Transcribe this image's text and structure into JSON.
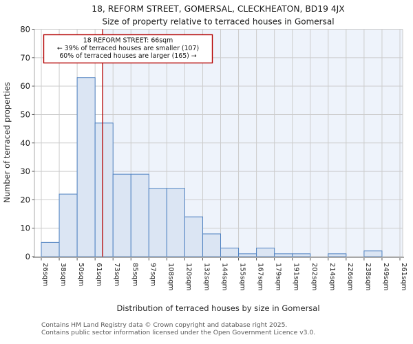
{
  "chart_data": {
    "type": "bar",
    "title": "18, REFORM STREET, GOMERSAL, CLECKHEATON, BD19 4JX",
    "subtitle": "Size of property relative to terraced houses in Gomersal",
    "xlabel": "Distribution of terraced houses by size in Gomersal",
    "ylabel": "Number of terraced properties",
    "categories": [
      "26sqm",
      "38sqm",
      "50sqm",
      "61sqm",
      "73sqm",
      "85sqm",
      "97sqm",
      "108sqm",
      "120sqm",
      "132sqm",
      "144sqm",
      "155sqm",
      "167sqm",
      "179sqm",
      "191sqm",
      "202sqm",
      "214sqm",
      "226sqm",
      "238sqm",
      "249sqm",
      "261sqm"
    ],
    "bin_edges_sqm": [
      26,
      38,
      50,
      61,
      73,
      85,
      97,
      108,
      120,
      132,
      144,
      155,
      167,
      179,
      191,
      202,
      214,
      226,
      238,
      249,
      261
    ],
    "values": [
      5,
      22,
      63,
      47,
      29,
      29,
      24,
      24,
      14,
      8,
      3,
      1,
      3,
      1,
      1,
      0,
      1,
      0,
      2,
      0
    ],
    "ylim": [
      0,
      80
    ],
    "ytick_step": 10,
    "grid": true,
    "legend_position": "none",
    "marker": {
      "label": "18 REFORM STREET",
      "value_sqm": 66
    },
    "annotation": {
      "line1": "18 REFORM STREET: 66sqm",
      "line2": "← 39% of terraced houses are smaller (107)",
      "line3": "60% of terraced houses are larger (165) →"
    }
  },
  "footer": {
    "line1": "Contains HM Land Registry data © Crown copyright and database right 2025.",
    "line2": "Contains public sector information licensed under the Open Government Licence v3.0."
  },
  "colors": {
    "bar_fill": "#dbe5f3",
    "bar_edge": "#4d80c0",
    "marker_line": "#b40000",
    "annotation_border": "#b40000",
    "shade": "#eef3fb",
    "grid": "#cccccc",
    "spine": "#a8a8a8",
    "tick": "#555555",
    "footer_text": "#595959"
  }
}
